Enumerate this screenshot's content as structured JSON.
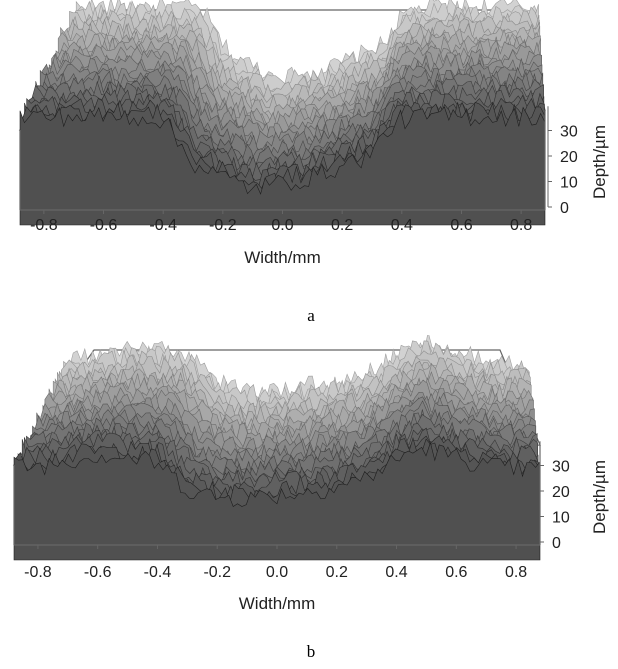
{
  "chart_data": [
    {
      "id": "a",
      "type": "surface",
      "caption": "a",
      "xlabel": "Width/mm",
      "zlabel": "Depth/µm",
      "xlim": [
        -0.88,
        0.88
      ],
      "zlim": [
        0,
        35
      ],
      "x_ticks": [
        "-0.8",
        "-0.6",
        "-0.4",
        "-0.2",
        "0.0",
        "0.2",
        "0.4",
        "0.6",
        "0.8"
      ],
      "z_ticks": [
        "0",
        "10",
        "20",
        "30"
      ],
      "profile": {
        "x": [
          -0.88,
          -0.8,
          -0.7,
          -0.6,
          -0.5,
          -0.4,
          -0.35,
          -0.3,
          -0.2,
          -0.1,
          0.0,
          0.1,
          0.2,
          0.3,
          0.35,
          0.4,
          0.5,
          0.6,
          0.7,
          0.8,
          0.88
        ],
        "depth": [
          29,
          29,
          29,
          29,
          29,
          28,
          20,
          13,
          8,
          4,
          6,
          8,
          12,
          16,
          24,
          28,
          29,
          29,
          29,
          29,
          29
        ]
      },
      "colors": {
        "surface_light": "#c8c8c8",
        "surface_dark": "#2e2e2e",
        "frame": "#666666"
      }
    },
    {
      "id": "b",
      "type": "surface",
      "caption": "b",
      "xlabel": "Width/mm",
      "zlabel": "Depth/µm",
      "xlim": [
        -0.88,
        0.88
      ],
      "zlim": [
        0,
        35
      ],
      "x_ticks": [
        "-0.8",
        "-0.6",
        "-0.4",
        "-0.2",
        "0.0",
        "0.2",
        "0.4",
        "0.6",
        "0.8"
      ],
      "z_ticks": [
        "0",
        "10",
        "20",
        "30"
      ],
      "profile": {
        "x": [
          -0.88,
          -0.8,
          -0.7,
          -0.6,
          -0.5,
          -0.4,
          -0.3,
          -0.2,
          -0.1,
          0.0,
          0.1,
          0.2,
          0.3,
          0.4,
          0.45,
          0.5,
          0.6,
          0.7,
          0.8,
          0.88
        ],
        "depth": [
          24,
          24,
          26,
          28,
          27,
          25,
          16,
          13,
          13,
          14,
          15,
          17,
          20,
          26,
          29,
          30,
          27,
          24,
          23,
          23
        ]
      },
      "colors": {
        "surface_light": "#9a9a9a",
        "surface_dark": "#333333",
        "frame": "#666666"
      }
    }
  ]
}
